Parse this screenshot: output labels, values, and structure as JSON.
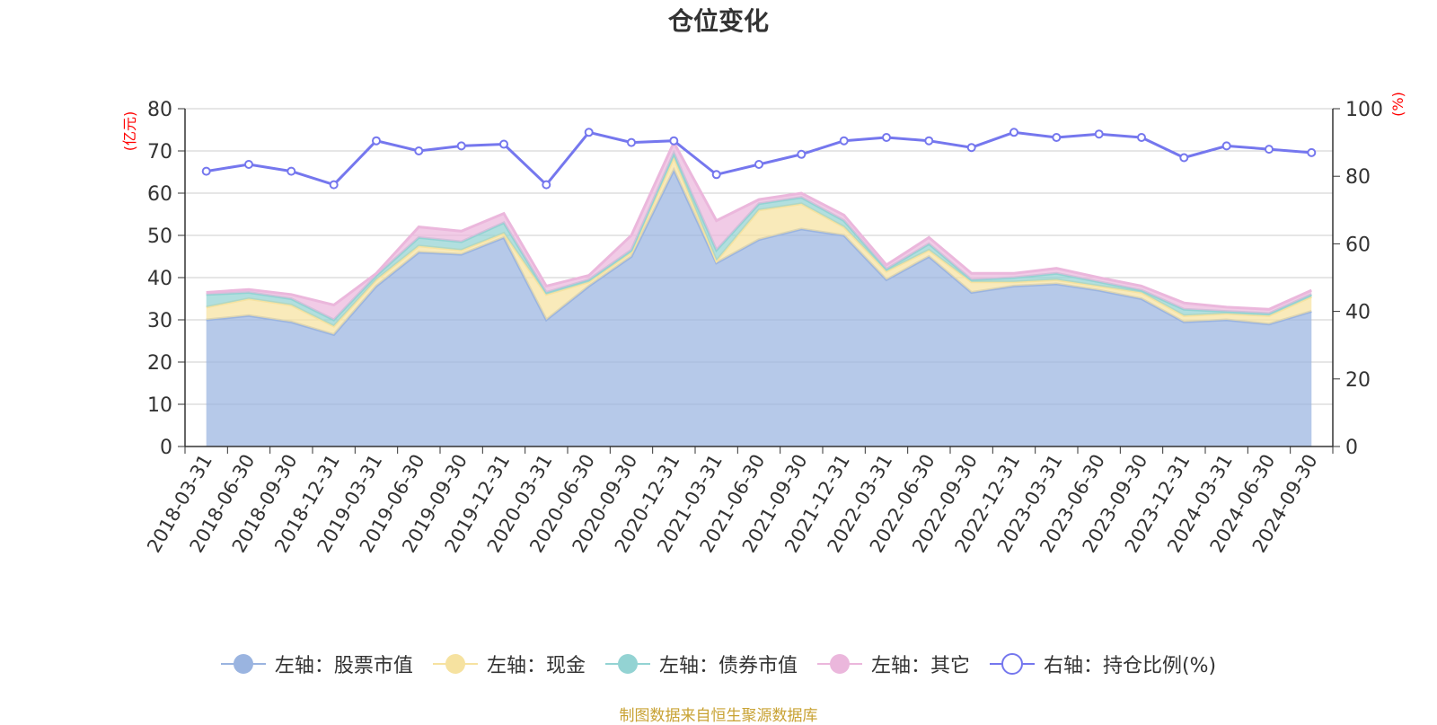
{
  "title": "仓位变化",
  "source": "制图数据来自恒生聚源数据库",
  "colors": {
    "stock": "#9ab4e0",
    "cash": "#f6e2a0",
    "bond": "#93d3d3",
    "other": "#ebb7dc",
    "ratio": "#7577ee",
    "right_axis_label": "#ff0000"
  },
  "chart_data": {
    "type": "area",
    "title": "仓位变化",
    "stacked": true,
    "x": [
      "2018-03-31",
      "2018-06-30",
      "2018-09-30",
      "2018-12-31",
      "2019-03-31",
      "2019-06-30",
      "2019-09-30",
      "2019-12-31",
      "2020-03-31",
      "2020-06-30",
      "2020-09-30",
      "2020-12-31",
      "2021-03-31",
      "2021-06-30",
      "2021-09-30",
      "2021-12-31",
      "2022-03-31",
      "2022-06-30",
      "2022-09-30",
      "2022-12-31",
      "2023-03-31",
      "2023-06-30",
      "2023-09-30",
      "2023-12-31",
      "2024-03-31",
      "2024-06-30",
      "2024-09-30"
    ],
    "left_axis": {
      "label": "(亿元)",
      "ylim": [
        0,
        80
      ],
      "ticks": [
        0,
        10,
        20,
        30,
        40,
        50,
        60,
        70,
        80
      ]
    },
    "right_axis": {
      "label": "(%)",
      "ylim": [
        0,
        100
      ],
      "ticks": [
        0,
        20,
        40,
        60,
        80,
        100
      ]
    },
    "series": [
      {
        "name": "左轴：股票市值",
        "axis": "left",
        "values": [
          30,
          31,
          29.5,
          26.5,
          38,
          46,
          45.5,
          49.5,
          30,
          38,
          45,
          65.5,
          43.5,
          49,
          51.5,
          50,
          39.5,
          45,
          36.5,
          38,
          38.5,
          37,
          35,
          29.5,
          30,
          29,
          32
        ]
      },
      {
        "name": "左轴：现金",
        "axis": "left",
        "values": [
          3,
          4,
          4,
          2,
          1.5,
          1.5,
          1,
          1,
          6,
          1,
          1,
          3,
          0.5,
          7,
          6,
          2,
          2,
          1.5,
          2.5,
          1,
          1,
          1,
          1.5,
          1.5,
          1.5,
          2,
          3.5
        ]
      },
      {
        "name": "左轴：债券市值",
        "axis": "left",
        "values": [
          3,
          1.5,
          1.5,
          1.5,
          1,
          2,
          2,
          2.5,
          0.5,
          0.5,
          0.5,
          1,
          2.5,
          1.5,
          1.5,
          1.5,
          0.5,
          1.5,
          0.5,
          1,
          1.5,
          1,
          0.5,
          1.5,
          0.5,
          0.5,
          0.5
        ]
      },
      {
        "name": "左轴：其它",
        "axis": "left",
        "values": [
          0.5,
          0.7,
          1,
          3.5,
          0.5,
          2.5,
          2.5,
          2.2,
          1.5,
          1,
          3.5,
          2.5,
          7,
          1,
          1,
          1.3,
          1,
          1.5,
          1.5,
          1,
          1.2,
          1,
          1,
          1.5,
          1,
          1,
          1
        ]
      },
      {
        "name": "右轴：持仓比例(%)",
        "axis": "right",
        "type": "line",
        "values": [
          81.5,
          83.5,
          81.5,
          77.5,
          90.5,
          87.5,
          89,
          89.5,
          77.5,
          93,
          90,
          90.5,
          80.5,
          83.5,
          86.5,
          90.5,
          91.5,
          90.5,
          88.5,
          93,
          91.5,
          92.5,
          91.5,
          85.5,
          89,
          88,
          87
        ]
      }
    ],
    "grid": true,
    "legend_position": "bottom"
  }
}
